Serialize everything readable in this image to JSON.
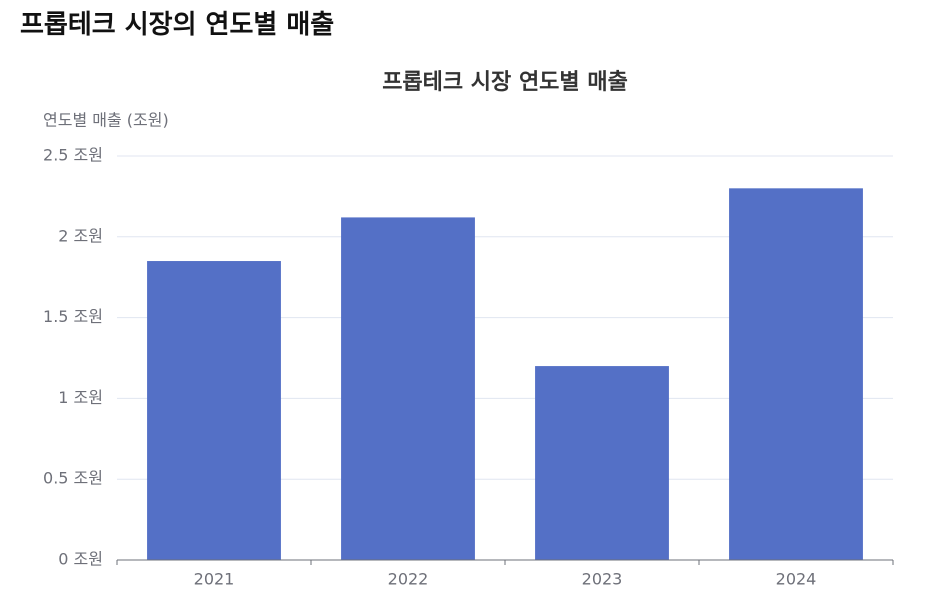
{
  "header": {
    "title": "프롭테크 시장의 연도별 매출"
  },
  "chart_data": {
    "type": "bar",
    "title": "프롭테크 시장 연도별 매출",
    "y_label": "연도별 매출 (조원)",
    "categories": [
      "2021",
      "2022",
      "2023",
      "2024"
    ],
    "values": [
      1.85,
      2.12,
      1.2,
      2.3
    ],
    "color": "#5470c6",
    "ylim": [
      0,
      2.5
    ],
    "yticks": [
      {
        "value": 0,
        "label": "0 조원"
      },
      {
        "value": 0.5,
        "label": "0.5 조원"
      },
      {
        "value": 1,
        "label": "1 조원"
      },
      {
        "value": 1.5,
        "label": "1.5 조원"
      },
      {
        "value": 2,
        "label": "2 조원"
      },
      {
        "value": 2.5,
        "label": "2.5 조원"
      }
    ],
    "grid": true
  }
}
